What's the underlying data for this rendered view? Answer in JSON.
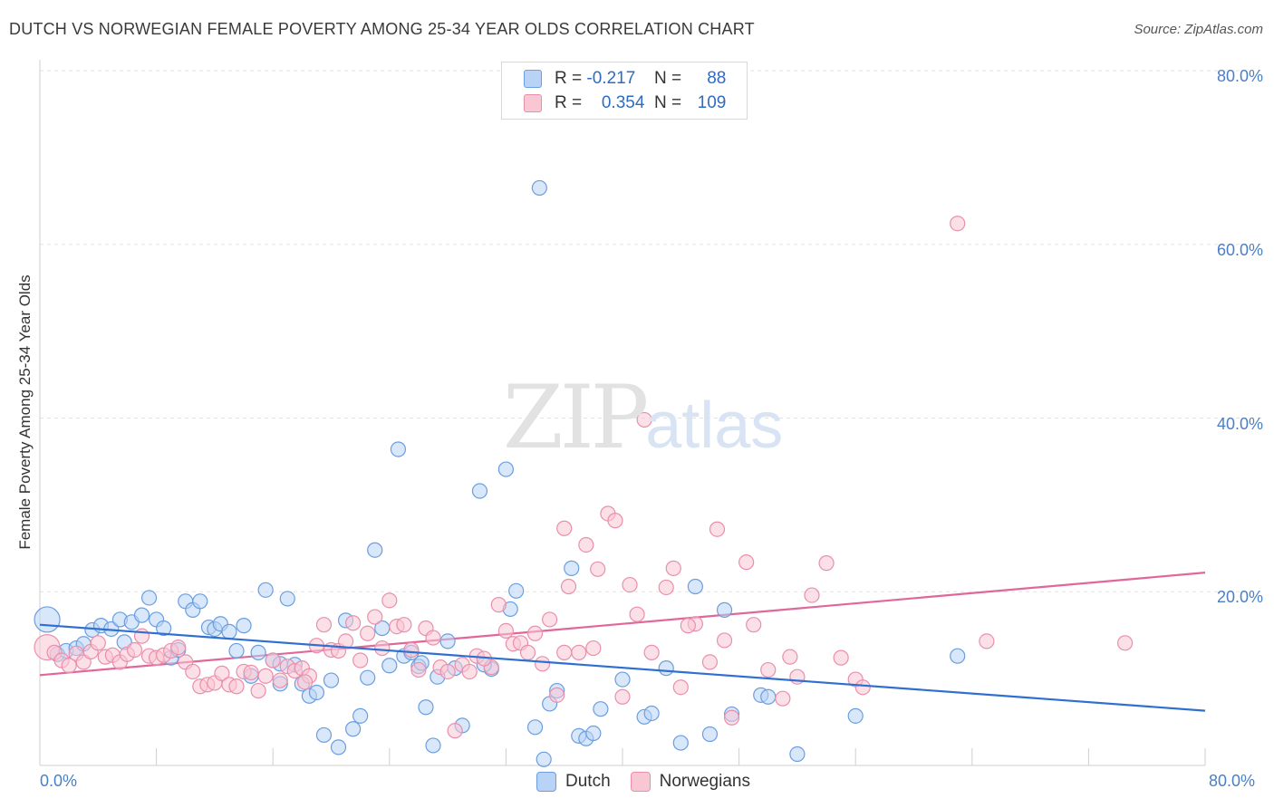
{
  "title": "DUTCH VS NORWEGIAN FEMALE POVERTY AMONG 25-34 YEAR OLDS CORRELATION CHART",
  "source": "Source: ZipAtlas.com",
  "watermark": {
    "zip": "ZIP",
    "atlas": "atlas"
  },
  "legend": {
    "r_label": "R =",
    "n_label": "N =",
    "dutch": {
      "r": "-0.217",
      "n": "88"
    },
    "norwegians": {
      "r": "0.354",
      "n": "109"
    }
  },
  "bottom_legend": {
    "dutch": "Dutch",
    "norwegians": "Norwegians"
  },
  "colors": {
    "dutch_fill": "#b8d3f5",
    "dutch_stroke": "#6a9ee0",
    "dutch_line": "#2f6fd0",
    "nor_fill": "#f9c6d4",
    "nor_stroke": "#ea8fab",
    "nor_line": "#e0679a",
    "axis_text": "#4a7fc8"
  },
  "chart_data": {
    "type": "scatter",
    "title": "DUTCH VS NORWEGIAN FEMALE POVERTY AMONG 25-34 YEAR OLDS CORRELATION CHART",
    "xlabel": "",
    "ylabel": "Female Poverty Among 25-34 Year Olds",
    "xlim": [
      0,
      80
    ],
    "ylim": [
      0,
      80
    ],
    "x_tick_labels": [
      "0.0%",
      "80.0%"
    ],
    "y_tick_labels": [
      "20.0%",
      "40.0%",
      "60.0%",
      "80.0%"
    ],
    "y_ticks": [
      20,
      40,
      60,
      80
    ],
    "grid": true,
    "legend_position": "top-center",
    "series": [
      {
        "name": "Dutch",
        "r": -0.217,
        "n": 88,
        "trend": {
          "x": [
            0,
            80
          ],
          "y": [
            16.2,
            6.3
          ]
        },
        "points": [
          [
            0.5,
            16.8
          ],
          [
            1.2,
            12.8
          ],
          [
            1.8,
            13.2
          ],
          [
            2.5,
            13.5
          ],
          [
            3.0,
            14.0
          ],
          [
            3.6,
            15.6
          ],
          [
            4.2,
            16.1
          ],
          [
            4.9,
            15.7
          ],
          [
            5.5,
            16.8
          ],
          [
            6.3,
            16.5
          ],
          [
            7.0,
            17.3
          ],
          [
            7.5,
            19.3
          ],
          [
            8.0,
            16.8
          ],
          [
            8.5,
            15.8
          ],
          [
            9.0,
            12.4
          ],
          [
            9.5,
            13.3
          ],
          [
            10.0,
            18.9
          ],
          [
            10.5,
            17.9
          ],
          [
            11.0,
            18.9
          ],
          [
            11.6,
            15.9
          ],
          [
            12.0,
            15.7
          ],
          [
            12.4,
            16.3
          ],
          [
            13.0,
            15.4
          ],
          [
            13.5,
            13.2
          ],
          [
            14.0,
            16.1
          ],
          [
            14.5,
            10.3
          ],
          [
            15.0,
            13.0
          ],
          [
            15.5,
            20.2
          ],
          [
            16.0,
            12.1
          ],
          [
            16.5,
            9.4
          ],
          [
            17.0,
            19.2
          ],
          [
            17.5,
            11.6
          ],
          [
            18.0,
            9.4
          ],
          [
            18.5,
            8.0
          ],
          [
            19.0,
            8.4
          ],
          [
            19.5,
            3.5
          ],
          [
            20.0,
            9.8
          ],
          [
            20.5,
            2.1
          ],
          [
            21.0,
            16.7
          ],
          [
            21.5,
            4.2
          ],
          [
            22.0,
            5.7
          ],
          [
            22.5,
            10.1
          ],
          [
            23.0,
            24.8
          ],
          [
            23.5,
            15.8
          ],
          [
            24.0,
            11.5
          ],
          [
            24.6,
            36.4
          ],
          [
            25.0,
            12.6
          ],
          [
            25.5,
            13.0
          ],
          [
            26.0,
            11.4
          ],
          [
            26.5,
            6.7
          ],
          [
            27.0,
            2.3
          ],
          [
            27.3,
            10.2
          ],
          [
            28.0,
            14.3
          ],
          [
            28.5,
            11.2
          ],
          [
            29.0,
            4.6
          ],
          [
            30.2,
            31.6
          ],
          [
            31.0,
            11.1
          ],
          [
            32.0,
            34.1
          ],
          [
            32.3,
            18.0
          ],
          [
            32.7,
            20.1
          ],
          [
            34.0,
            4.4
          ],
          [
            34.3,
            66.5
          ],
          [
            34.6,
            0.7
          ],
          [
            35.0,
            7.1
          ],
          [
            35.5,
            8.6
          ],
          [
            36.5,
            22.7
          ],
          [
            37.0,
            3.4
          ],
          [
            37.5,
            3.1
          ],
          [
            38.0,
            3.7
          ],
          [
            38.5,
            6.5
          ],
          [
            40.0,
            9.9
          ],
          [
            41.5,
            5.6
          ],
          [
            42.0,
            6.0
          ],
          [
            43.0,
            11.2
          ],
          [
            44.0,
            2.6
          ],
          [
            45.0,
            20.6
          ],
          [
            46.0,
            3.6
          ],
          [
            47.0,
            17.9
          ],
          [
            47.5,
            5.9
          ],
          [
            49.5,
            8.1
          ],
          [
            50.0,
            7.9
          ],
          [
            52.0,
            1.3
          ],
          [
            56.0,
            5.7
          ],
          [
            63.0,
            12.6
          ],
          [
            30.5,
            11.6
          ],
          [
            26.2,
            11.8
          ],
          [
            16.5,
            11.7
          ],
          [
            5.8,
            14.2
          ]
        ]
      },
      {
        "name": "Norwegians",
        "r": 0.354,
        "n": 109,
        "trend": {
          "x": [
            0,
            80
          ],
          "y": [
            10.4,
            22.2
          ]
        },
        "points": [
          [
            0.5,
            13.6
          ],
          [
            1.0,
            13.0
          ],
          [
            1.5,
            12.1
          ],
          [
            2.0,
            11.5
          ],
          [
            2.5,
            12.9
          ],
          [
            3.0,
            11.9
          ],
          [
            3.5,
            13.1
          ],
          [
            4.0,
            14.1
          ],
          [
            4.5,
            12.5
          ],
          [
            5.0,
            12.7
          ],
          [
            5.5,
            11.9
          ],
          [
            6.0,
            12.8
          ],
          [
            6.5,
            13.3
          ],
          [
            7.0,
            14.9
          ],
          [
            7.5,
            12.6
          ],
          [
            8.0,
            12.4
          ],
          [
            8.5,
            12.7
          ],
          [
            9.0,
            13.2
          ],
          [
            9.5,
            13.6
          ],
          [
            10.0,
            11.9
          ],
          [
            10.5,
            10.8
          ],
          [
            11.0,
            9.1
          ],
          [
            11.5,
            9.3
          ],
          [
            12.0,
            9.5
          ],
          [
            12.5,
            10.6
          ],
          [
            13.0,
            9.3
          ],
          [
            13.5,
            9.1
          ],
          [
            14.0,
            10.8
          ],
          [
            14.5,
            10.7
          ],
          [
            15.0,
            8.6
          ],
          [
            15.5,
            10.3
          ],
          [
            16.0,
            12.1
          ],
          [
            16.5,
            9.8
          ],
          [
            17.0,
            11.4
          ],
          [
            17.5,
            10.9
          ],
          [
            18.0,
            11.2
          ],
          [
            18.5,
            10.3
          ],
          [
            19.0,
            13.8
          ],
          [
            19.5,
            16.2
          ],
          [
            20.0,
            13.3
          ],
          [
            20.5,
            13.2
          ],
          [
            21.0,
            14.3
          ],
          [
            21.5,
            16.4
          ],
          [
            22.0,
            12.1
          ],
          [
            22.5,
            15.2
          ],
          [
            23.0,
            17.1
          ],
          [
            23.5,
            13.5
          ],
          [
            24.0,
            19.0
          ],
          [
            24.5,
            16.0
          ],
          [
            25.0,
            16.2
          ],
          [
            25.5,
            13.3
          ],
          [
            26.0,
            11.0
          ],
          [
            26.5,
            15.8
          ],
          [
            27.0,
            14.7
          ],
          [
            27.5,
            11.3
          ],
          [
            28.0,
            10.8
          ],
          [
            28.5,
            4.0
          ],
          [
            29.0,
            11.6
          ],
          [
            29.5,
            10.8
          ],
          [
            30.0,
            12.6
          ],
          [
            31.0,
            11.3
          ],
          [
            31.5,
            18.5
          ],
          [
            32.0,
            15.5
          ],
          [
            32.5,
            14.0
          ],
          [
            33.0,
            14.1
          ],
          [
            33.5,
            13.0
          ],
          [
            34.0,
            15.2
          ],
          [
            34.5,
            11.7
          ],
          [
            35.0,
            16.8
          ],
          [
            35.5,
            8.1
          ],
          [
            36.0,
            13.0
          ],
          [
            36.3,
            20.6
          ],
          [
            36.0,
            27.3
          ],
          [
            37.0,
            13.0
          ],
          [
            37.5,
            25.4
          ],
          [
            38.0,
            13.5
          ],
          [
            38.3,
            22.6
          ],
          [
            39.0,
            29.0
          ],
          [
            39.5,
            28.2
          ],
          [
            40.0,
            7.9
          ],
          [
            41.0,
            17.4
          ],
          [
            42.0,
            13.0
          ],
          [
            43.0,
            20.5
          ],
          [
            43.5,
            22.7
          ],
          [
            44.0,
            9.0
          ],
          [
            45.0,
            16.3
          ],
          [
            46.0,
            11.9
          ],
          [
            46.5,
            27.2
          ],
          [
            47.0,
            14.4
          ],
          [
            47.5,
            5.5
          ],
          [
            48.5,
            23.4
          ],
          [
            49.0,
            16.2
          ],
          [
            50.0,
            11.0
          ],
          [
            51.0,
            7.7
          ],
          [
            51.5,
            12.5
          ],
          [
            52.0,
            10.2
          ],
          [
            53.0,
            19.6
          ],
          [
            54.0,
            23.3
          ],
          [
            55.0,
            12.4
          ],
          [
            56.0,
            9.9
          ],
          [
            56.5,
            9.0
          ],
          [
            65.0,
            14.3
          ],
          [
            74.5,
            14.1
          ],
          [
            63.0,
            62.4
          ],
          [
            41.5,
            39.8
          ],
          [
            40.5,
            20.8
          ],
          [
            44.5,
            16.1
          ],
          [
            30.5,
            12.3
          ],
          [
            18.2,
            9.6
          ]
        ]
      }
    ]
  }
}
